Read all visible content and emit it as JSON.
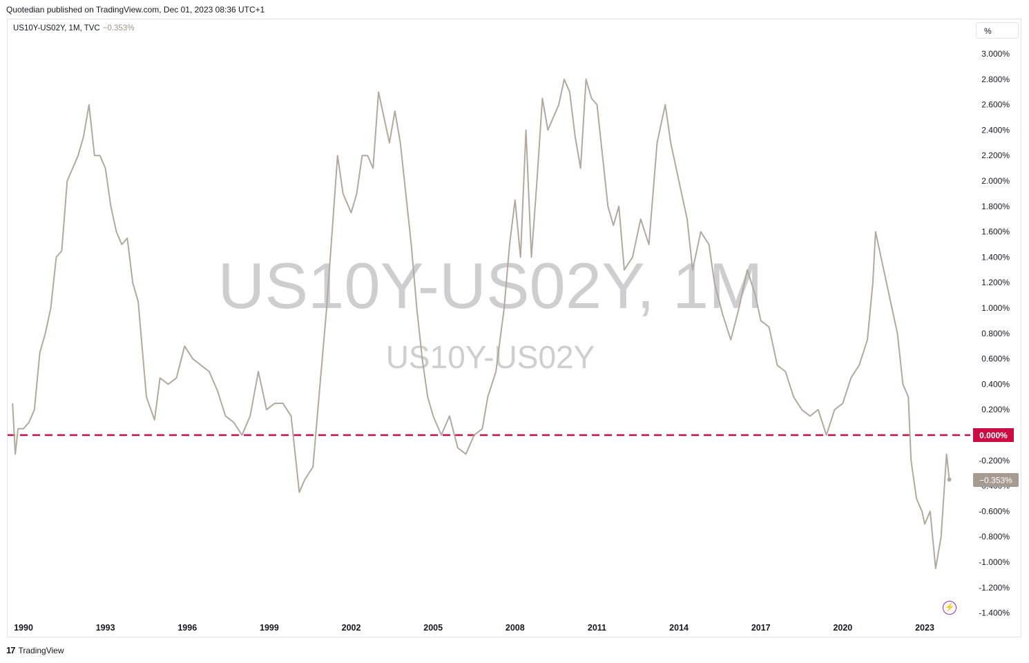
{
  "header": {
    "published_text": "Quotedian published on TradingView.com, Dec 01, 2023 08:36 UTC+1"
  },
  "legend": {
    "symbol": "US10Y-US02Y, 1M, TVC",
    "change": "−0.353%"
  },
  "unit_label": "%",
  "watermark": {
    "main": "US10Y-US02Y, 1M",
    "sub": "US10Y-US02Y"
  },
  "footer": {
    "brand": "TradingView"
  },
  "colors": {
    "line": "#b2a89c",
    "zero_line": "#cc0c44",
    "last_price_bg": "#a59b90",
    "grid_text": "#131722"
  },
  "icons": {
    "tv_logo": "tradingview-logo-icon",
    "flash": "lightning-icon"
  },
  "chart_data": {
    "type": "line",
    "title": "",
    "xlabel": "",
    "ylabel": "",
    "ylim": [
      -1.4,
      3.0
    ],
    "xlim": [
      1989.6,
      2025.2
    ],
    "grid": false,
    "x_ticks": [
      1990,
      1993,
      1996,
      1999,
      2002,
      2005,
      2008,
      2011,
      2014,
      2017,
      2020,
      2023
    ],
    "x_tick_labels": [
      "1990",
      "1993",
      "1996",
      "1999",
      "2002",
      "2005",
      "2008",
      "2011",
      "2014",
      "2017",
      "2020",
      "2023"
    ],
    "y_ticks": [
      3.0,
      2.8,
      2.6,
      2.4,
      2.2,
      2.0,
      1.8,
      1.6,
      1.4,
      1.2,
      1.0,
      0.8,
      0.6,
      0.4,
      0.2,
      0.0,
      -0.2,
      -0.4,
      -0.6,
      -0.8,
      -1.0,
      -1.2,
      -1.4
    ],
    "y_tick_labels": [
      "3.000%",
      "2.800%",
      "2.600%",
      "2.400%",
      "2.200%",
      "2.000%",
      "1.800%",
      "1.600%",
      "1.400%",
      "1.200%",
      "1.000%",
      "0.800%",
      "0.600%",
      "0.400%",
      "0.200%",
      "0.000%",
      "-0.200%",
      "-0.400%",
      "-0.600%",
      "-0.800%",
      "-1.000%",
      "-1.200%",
      "-1.400%"
    ],
    "zero_line": {
      "value": 0.0,
      "label": "0.000%"
    },
    "last_value": {
      "value": -0.353,
      "label": "−0.353%"
    },
    "series": [
      {
        "x": [
          1989.6,
          1989.7,
          1989.8,
          1990.0,
          1990.2,
          1990.4,
          1990.6,
          1990.8,
          1991.0,
          1991.2,
          1991.4,
          1991.6,
          1991.8,
          1992.0,
          1992.2,
          1992.4,
          1992.6,
          1992.8,
          1993.0,
          1993.2,
          1993.4,
          1993.6,
          1993.8,
          1994.0,
          1994.2,
          1994.5,
          1994.8,
          1995.0,
          1995.3,
          1995.6,
          1995.9,
          1996.2,
          1996.5,
          1996.8,
          1997.1,
          1997.4,
          1997.7,
          1998.0,
          1998.3,
          1998.6,
          1998.9,
          1999.2,
          1999.5,
          1999.8,
          2000.1,
          2000.3,
          2000.6,
          2000.9,
          2001.1,
          2001.3,
          2001.5,
          2001.7,
          2001.9,
          2002.0,
          2002.2,
          2002.4,
          2002.6,
          2002.8,
          2003.0,
          2003.2,
          2003.4,
          2003.6,
          2003.8,
          2004.0,
          2004.2,
          2004.4,
          2004.6,
          2004.8,
          2005.0,
          2005.3,
          2005.6,
          2005.9,
          2006.2,
          2006.5,
          2006.8,
          2007.0,
          2007.3,
          2007.6,
          2007.8,
          2008.0,
          2008.2,
          2008.4,
          2008.6,
          2008.8,
          2009.0,
          2009.2,
          2009.4,
          2009.6,
          2009.8,
          2010.0,
          2010.2,
          2010.4,
          2010.6,
          2010.8,
          2011.0,
          2011.2,
          2011.4,
          2011.6,
          2011.8,
          2012.0,
          2012.3,
          2012.6,
          2012.9,
          2013.2,
          2013.5,
          2013.7,
          2013.9,
          2014.1,
          2014.3,
          2014.5,
          2014.8,
          2015.1,
          2015.3,
          2015.6,
          2015.9,
          2016.2,
          2016.5,
          2016.8,
          2017.0,
          2017.3,
          2017.6,
          2017.9,
          2018.2,
          2018.5,
          2018.8,
          2019.1,
          2019.4,
          2019.7,
          2020.0,
          2020.3,
          2020.6,
          2020.9,
          2021.1,
          2021.2,
          2021.4,
          2021.6,
          2021.8,
          2022.0,
          2022.2,
          2022.4,
          2022.5,
          2022.7,
          2022.9,
          2023.0,
          2023.2,
          2023.4,
          2023.6,
          2023.8,
          2023.9
        ],
        "values": [
          0.25,
          -0.15,
          0.05,
          0.05,
          0.1,
          0.2,
          0.65,
          0.8,
          1.0,
          1.4,
          1.45,
          2.0,
          2.1,
          2.2,
          2.35,
          2.6,
          2.2,
          2.2,
          2.1,
          1.8,
          1.6,
          1.5,
          1.55,
          1.2,
          1.05,
          0.3,
          0.12,
          0.45,
          0.4,
          0.45,
          0.7,
          0.6,
          0.55,
          0.5,
          0.35,
          0.15,
          0.1,
          0.0,
          0.15,
          0.5,
          0.2,
          0.25,
          0.25,
          0.15,
          -0.45,
          -0.35,
          -0.25,
          0.5,
          1.0,
          1.6,
          2.2,
          1.9,
          1.8,
          1.75,
          1.9,
          2.2,
          2.2,
          2.1,
          2.7,
          2.5,
          2.3,
          2.55,
          2.3,
          1.9,
          1.5,
          1.0,
          0.6,
          0.3,
          0.15,
          0.0,
          0.15,
          -0.1,
          -0.15,
          0.0,
          0.05,
          0.3,
          0.5,
          1.0,
          1.5,
          1.85,
          1.4,
          2.4,
          1.4,
          2.0,
          2.65,
          2.4,
          2.5,
          2.6,
          2.8,
          2.7,
          2.35,
          2.1,
          2.8,
          2.65,
          2.6,
          2.2,
          1.8,
          1.65,
          1.8,
          1.3,
          1.4,
          1.7,
          1.5,
          2.3,
          2.6,
          2.3,
          2.1,
          1.9,
          1.7,
          1.3,
          1.6,
          1.5,
          1.2,
          0.95,
          0.75,
          1.0,
          1.3,
          1.1,
          0.9,
          0.85,
          0.55,
          0.5,
          0.3,
          0.2,
          0.15,
          0.2,
          0.0,
          0.2,
          0.25,
          0.45,
          0.55,
          0.75,
          1.2,
          1.6,
          1.4,
          1.2,
          1.0,
          0.8,
          0.4,
          0.3,
          -0.2,
          -0.5,
          -0.6,
          -0.7,
          -0.6,
          -1.05,
          -0.8,
          -0.15,
          -0.35
        ]
      }
    ]
  }
}
